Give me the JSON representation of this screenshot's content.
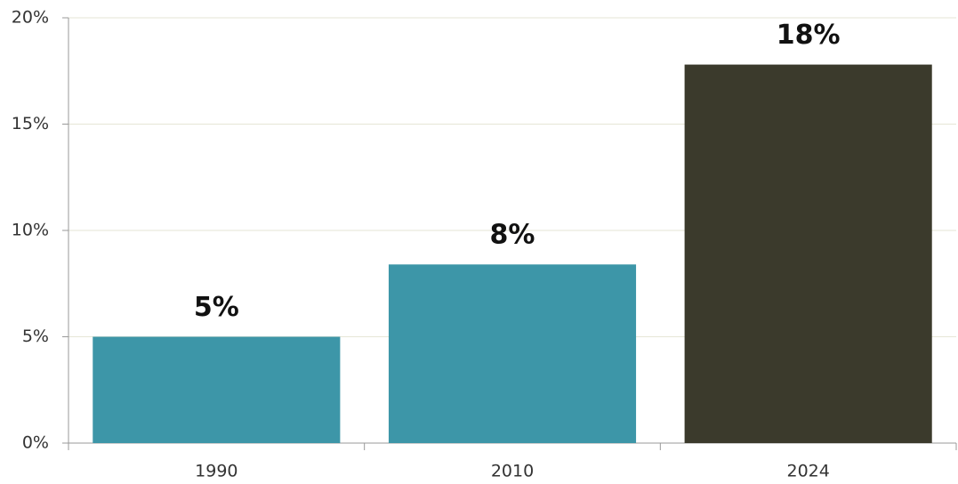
{
  "chart_data": {
    "type": "bar",
    "categories": [
      "1990",
      "2010",
      "2024"
    ],
    "values": [
      5,
      8.4,
      17.8
    ],
    "value_labels": [
      "5%",
      "8%",
      "18%"
    ],
    "colors": [
      "#3d96a8",
      "#3d96a8",
      "#3b3a2c"
    ],
    "ylim": [
      0,
      20
    ],
    "yticks": [
      {
        "value": 0,
        "label": "0%"
      },
      {
        "value": 5,
        "label": "5%"
      },
      {
        "value": 10,
        "label": "10%"
      },
      {
        "value": 15,
        "label": "15%"
      },
      {
        "value": 20,
        "label": "20%"
      }
    ],
    "grid": true
  }
}
